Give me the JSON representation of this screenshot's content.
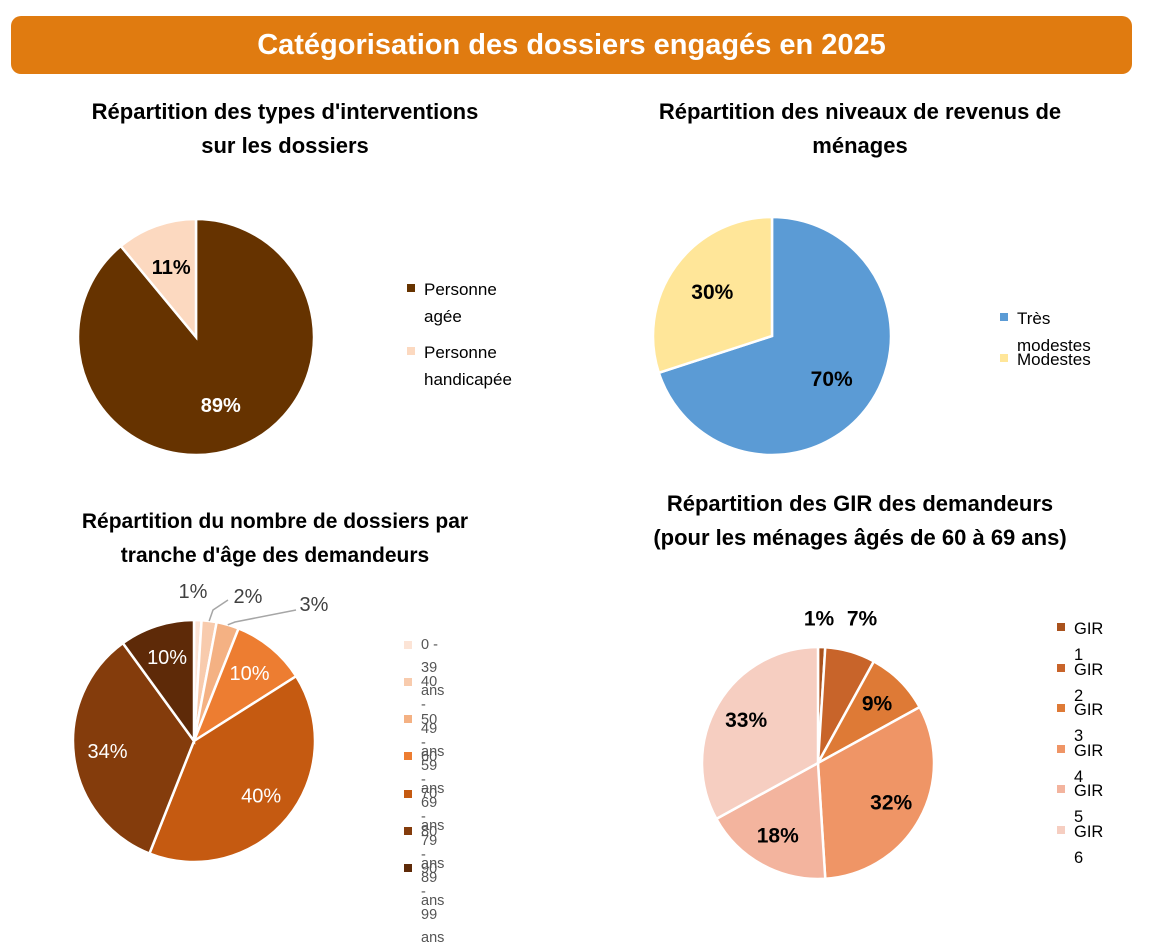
{
  "header": {
    "title": "Catégorisation des dossiers engagés en 2025",
    "color": "#E07B10"
  },
  "chart_data": [
    {
      "type": "pie",
      "title": "Répartition des types d'interventions\nsur les dossiers",
      "categories": [
        "Personne agée",
        "Personne\nhandicapée"
      ],
      "values": [
        89,
        11
      ],
      "labels": [
        "89%",
        "11%"
      ],
      "colors": [
        "#663300",
        "#FCD9C0"
      ],
      "label_colors": [
        "#ffffff",
        "#000000"
      ],
      "legend": "right"
    },
    {
      "type": "pie",
      "title": "Répartition des niveaux de revenus de\nménages",
      "categories": [
        "Très modestes",
        "Modestes"
      ],
      "values": [
        70,
        30
      ],
      "labels": [
        "70%",
        "30%"
      ],
      "colors": [
        "#5B9BD5",
        "#FFE699"
      ],
      "label_colors": [
        "#000000",
        "#000000"
      ],
      "legend": "right"
    },
    {
      "type": "pie",
      "title": "Répartition du nombre de dossiers par\ntranche d'âge des demandeurs",
      "categories": [
        "0 - 39 ans",
        "40 - 49 ans",
        "50 - 59 ans",
        "60 - 69 ans",
        "70 - 79 ans",
        "80 - 89 ans",
        "90 - 99 ans"
      ],
      "values": [
        1,
        2,
        3,
        10,
        40,
        34,
        10
      ],
      "labels": [
        "1%",
        "2%",
        "3%",
        "10%",
        "40%",
        "34%",
        "10%"
      ],
      "colors": [
        "#FCE4D6",
        "#F8CBAD",
        "#F4B183",
        "#ED7D31",
        "#C55A11",
        "#843C0C",
        "#5E2A08"
      ],
      "legend": "right"
    },
    {
      "type": "pie",
      "title": "Répartition des GIR des demandeurs\n(pour les ménages âgés de 60 à 69 ans)",
      "categories": [
        "GIR 1",
        "GIR 2",
        "GIR 3",
        "GIR 4",
        "GIR 5",
        "GIR 6"
      ],
      "values": [
        1,
        7,
        9,
        32,
        18,
        33
      ],
      "labels": [
        "1%",
        "7%",
        "9%",
        "32%",
        "18%",
        "33%"
      ],
      "colors": [
        "#A9521D",
        "#C8642A",
        "#DE7A36",
        "#EF9566",
        "#F3B49E",
        "#F6CEC1"
      ],
      "legend": "right"
    }
  ]
}
